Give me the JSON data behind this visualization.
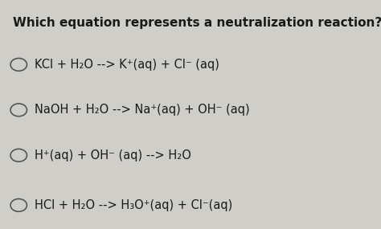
{
  "title": "Which equation represents a neutralization reaction?",
  "background_color": "#d0cec8",
  "text_color": "#1a1a1a",
  "options": [
    "KCl + H₂O --> K⁺(aq) + Cl⁻ (aq)",
    "NaOH + H₂O --> Na⁺(aq) + OH⁻ (aq)",
    "H⁺(aq) + OH⁻ (aq) --> H₂O",
    "HCl + H₂O --> H₃O⁺(aq) + Cl⁻(aq)"
  ],
  "circle_color": "#555555",
  "title_fontsize": 11,
  "option_fontsize": 10.5,
  "figsize": [
    4.74,
    2.85
  ],
  "dpi": 100
}
